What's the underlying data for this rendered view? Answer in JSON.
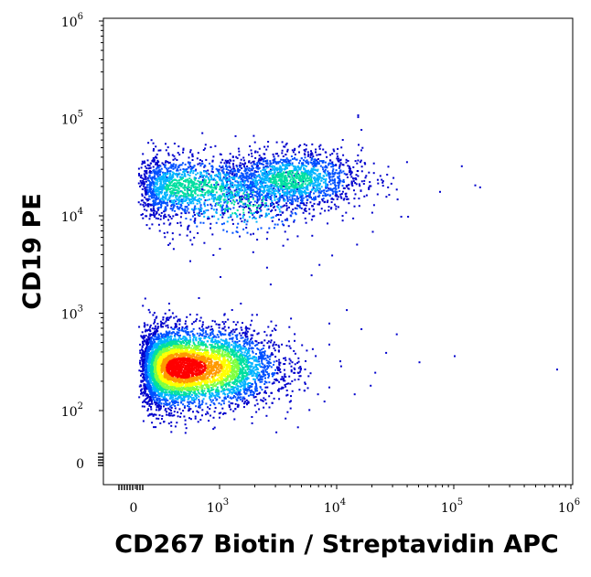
{
  "chart_data": {
    "type": "scatter",
    "style": "density-dot-plot",
    "xlabel": "CD267 Biotin / Streptavidin APC",
    "ylabel": "CD19 PE",
    "x_scale": "biexponential",
    "y_scale": "biexponential",
    "xlim": [
      -300,
      1000000
    ],
    "ylim": [
      -20,
      1000000
    ],
    "x_ticks": [
      {
        "value": 0,
        "base": "0",
        "exp": ""
      },
      {
        "value": 1000,
        "base": "10",
        "exp": "3"
      },
      {
        "value": 10000,
        "base": "10",
        "exp": "4"
      },
      {
        "value": 100000,
        "base": "10",
        "exp": "5"
      },
      {
        "value": 1000000,
        "base": "10",
        "exp": "6"
      }
    ],
    "y_ticks": [
      {
        "value": 0,
        "base": "0",
        "exp": ""
      },
      {
        "value": 100,
        "base": "10",
        "exp": "2"
      },
      {
        "value": 1000,
        "base": "10",
        "exp": "3"
      },
      {
        "value": 10000,
        "base": "10",
        "exp": "4"
      },
      {
        "value": 100000,
        "base": "10",
        "exp": "5"
      },
      {
        "value": 1000000,
        "base": "10",
        "exp": "6"
      }
    ],
    "grid": false,
    "colormap": [
      "#0000cc",
      "#0050ff",
      "#00b4ff",
      "#00e0a0",
      "#80ff40",
      "#ffff00",
      "#ff9900",
      "#ff0000"
    ],
    "populations": [
      {
        "center": [
          550,
          280
        ],
        "spread_decades": [
          0.36,
          0.2
        ],
        "weight": 0.62
      },
      {
        "center": [
          600,
          20000
        ],
        "spread_decades": [
          0.42,
          0.16
        ],
        "weight": 0.17
      },
      {
        "center": [
          4000,
          24000
        ],
        "spread_decades": [
          0.3,
          0.15
        ],
        "weight": 0.17
      },
      {
        "center": [
          1500,
          14000
        ],
        "spread_decades": [
          0.35,
          0.2
        ],
        "weight": 0.04
      }
    ],
    "sparse_events": [
      [
        15000,
        110000
      ],
      [
        16000,
        78000
      ],
      [
        30000,
        25000
      ],
      [
        32000,
        19000
      ],
      [
        27000,
        20000
      ],
      [
        22000,
        17000
      ],
      [
        20000,
        7000
      ],
      [
        35000,
        10000
      ],
      [
        40000,
        10000
      ],
      [
        75000,
        18000
      ],
      [
        115000,
        33000
      ],
      [
        150000,
        21000
      ],
      [
        165000,
        20000
      ],
      [
        750000,
        270
      ],
      [
        100000,
        370
      ],
      [
        50000,
        320
      ],
      [
        32000,
        620
      ],
      [
        26000,
        400
      ],
      [
        21000,
        250
      ],
      [
        16000,
        700
      ],
      [
        12000,
        1100
      ],
      [
        8500,
        800
      ],
      [
        14000,
        150
      ],
      [
        3000,
        60
      ],
      [
        4000,
        900
      ],
      [
        6000,
        2500
      ],
      [
        2500,
        3000
      ],
      [
        1000,
        2400
      ],
      [
        9000,
        4000
      ],
      [
        7000,
        3200
      ]
    ]
  }
}
